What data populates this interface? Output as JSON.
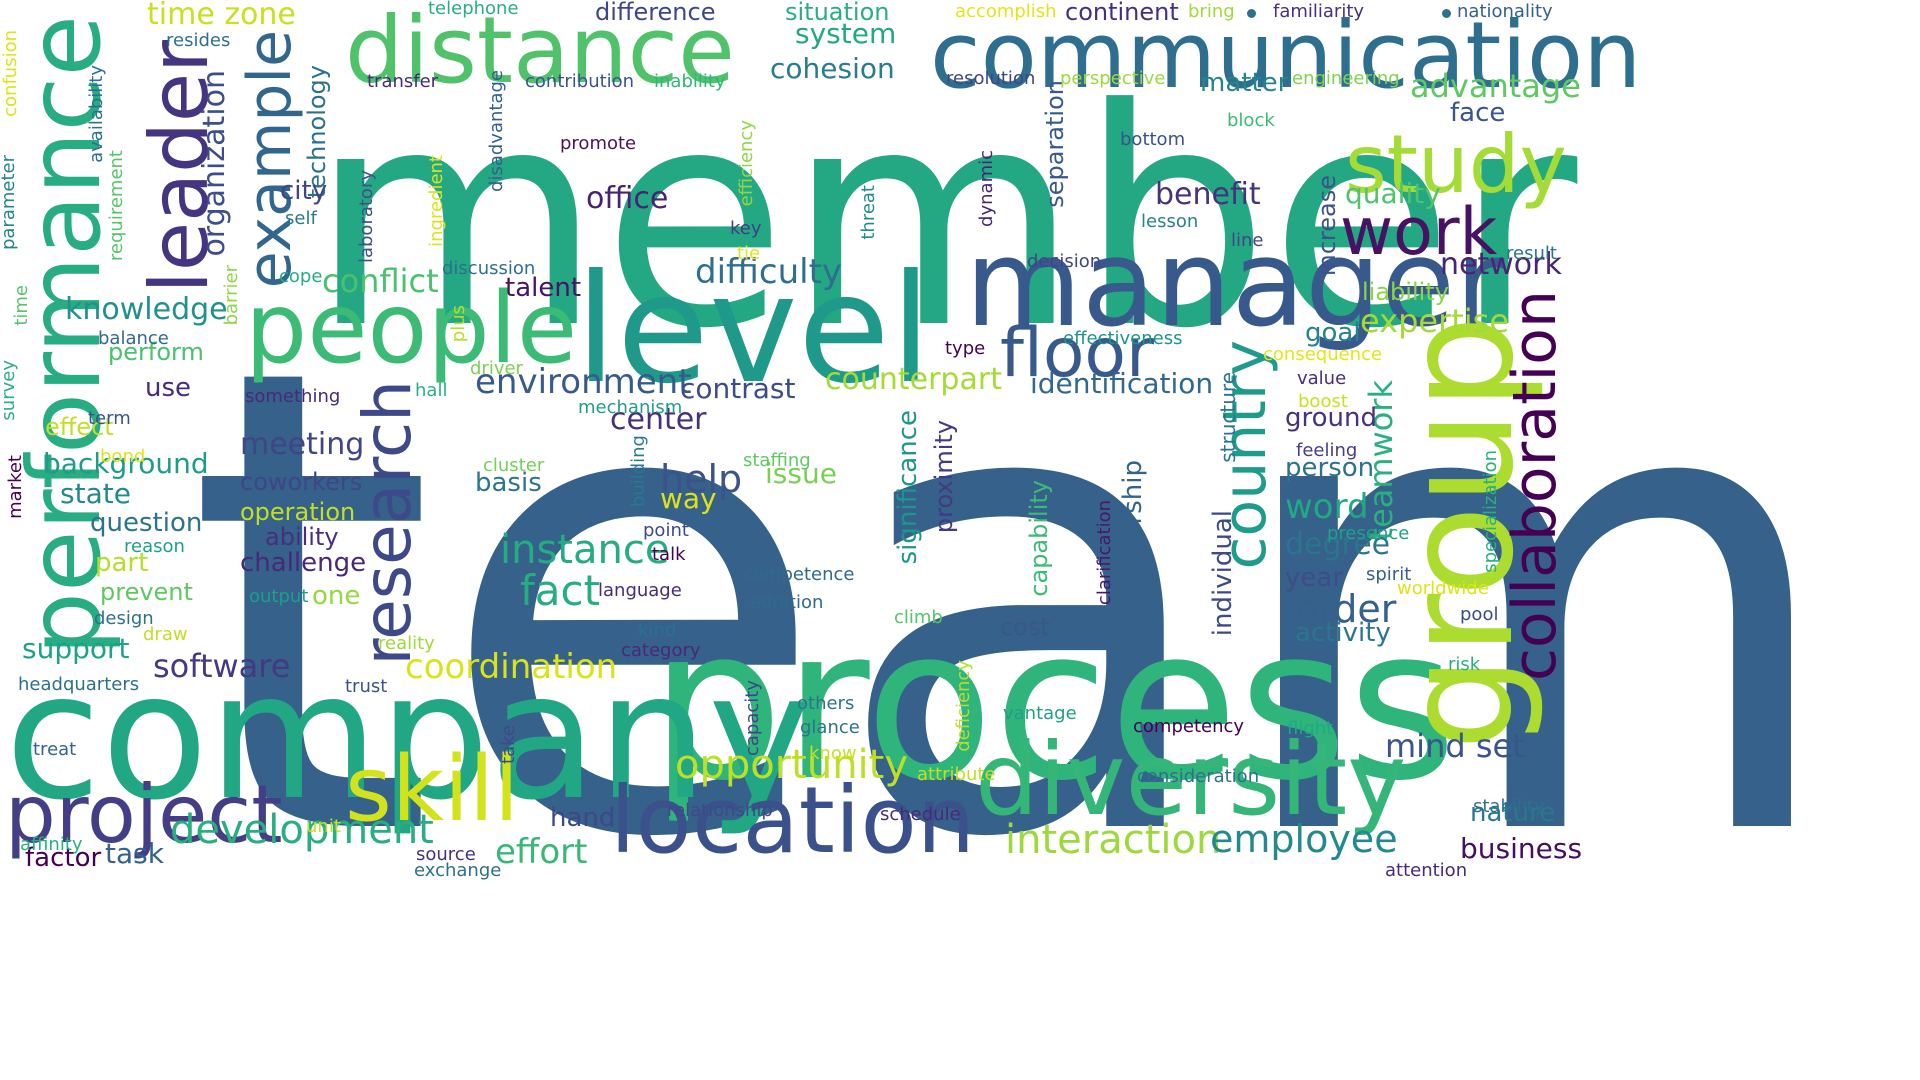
{
  "cloud": {
    "words": [
      {
        "id": "team",
        "text": "team",
        "color": "#35618a"
      },
      {
        "id": "member",
        "text": "member",
        "color": "#24a883"
      },
      {
        "id": "process",
        "text": "process",
        "color": "#2fb47c"
      },
      {
        "id": "company",
        "text": "company",
        "color": "#22a785"
      },
      {
        "id": "communication",
        "text": "communication",
        "color": "#2e6e8e"
      },
      {
        "id": "distance",
        "text": "distance",
        "color": "#4fc26a"
      },
      {
        "id": "level",
        "text": "level",
        "color": "#1f9a8a"
      },
      {
        "id": "manager",
        "text": "manager",
        "color": "#38598c"
      },
      {
        "id": "performance",
        "text": "performance",
        "color": "#27ad81"
      },
      {
        "id": "diversity",
        "text": "diversity",
        "color": "#34b679"
      },
      {
        "id": "group",
        "text": "group",
        "color": "#addc30"
      },
      {
        "id": "people",
        "text": "people",
        "color": "#3bbb75"
      },
      {
        "id": "leader",
        "text": "leader",
        "color": "#453581"
      },
      {
        "id": "location",
        "text": "location",
        "color": "#3b518b"
      },
      {
        "id": "project",
        "text": "project",
        "color": "#433e85"
      },
      {
        "id": "skill",
        "text": "skill",
        "color": "#d2e21b"
      },
      {
        "id": "research",
        "text": "research",
        "color": "#3e4989"
      },
      {
        "id": "study",
        "text": "study",
        "color": "#a5db36"
      },
      {
        "id": "example",
        "text": "example",
        "color": "#31668e"
      },
      {
        "id": "collaboration",
        "text": "collaboration",
        "color": "#440154"
      },
      {
        "id": "country",
        "text": "country",
        "color": "#1e9b8a"
      },
      {
        "id": "work",
        "text": "work",
        "color": "#471164"
      },
      {
        "id": "floor",
        "text": "floor",
        "color": "#38598c"
      },
      {
        "id": "development",
        "text": "development",
        "color": "#29af7f"
      },
      {
        "id": "opportunity",
        "text": "opportunity",
        "color": "#bddf26"
      },
      {
        "id": "interaction",
        "text": "interaction",
        "color": "#9dd93b"
      },
      {
        "id": "employee",
        "text": "employee",
        "color": "#23898e"
      },
      {
        "id": "instance",
        "text": "instance",
        "color": "#25ac82"
      },
      {
        "id": "fact",
        "text": "fact",
        "color": "#26ad81"
      },
      {
        "id": "difficulty",
        "text": "difficulty",
        "color": "#2e6e8e"
      },
      {
        "id": "coordination",
        "text": "coordination",
        "color": "#dae319"
      },
      {
        "id": "environment",
        "text": "environment",
        "color": "#375a8c"
      },
      {
        "id": "effort",
        "text": "effort",
        "color": "#37b878"
      },
      {
        "id": "help",
        "text": "help",
        "color": "#3b528b"
      },
      {
        "id": "order",
        "text": "order",
        "color": "#34608d"
      },
      {
        "id": "software",
        "text": "software",
        "color": "#443983"
      },
      {
        "id": "conflict",
        "text": "conflict",
        "color": "#4ac16d"
      },
      {
        "id": "knowledge",
        "text": "knowledge",
        "color": "#21918c"
      },
      {
        "id": "benefit",
        "text": "benefit",
        "color": "#46337e"
      },
      {
        "id": "office",
        "text": "office",
        "color": "#482374"
      },
      {
        "id": "expertise",
        "text": "expertise",
        "color": "#a2da37"
      },
      {
        "id": "network",
        "text": "network",
        "color": "#482475"
      },
      {
        "id": "advantage",
        "text": "advantage",
        "color": "#5ec962"
      },
      {
        "id": "quality",
        "text": "quality",
        "color": "#4ec36b"
      },
      {
        "id": "mind_set",
        "text": "mind set",
        "color": "#3a548c"
      },
      {
        "id": "business",
        "text": "business",
        "color": "#470d60"
      },
      {
        "id": "cohesion",
        "text": "cohesion",
        "color": "#297b8e"
      },
      {
        "id": "system",
        "text": "system",
        "color": "#22a884"
      },
      {
        "id": "support",
        "text": "support",
        "color": "#1fa088"
      },
      {
        "id": "counterpart",
        "text": "counterpart",
        "color": "#a5db36"
      },
      {
        "id": "identification",
        "text": "identification",
        "color": "#31688e"
      },
      {
        "id": "contrast",
        "text": "contrast",
        "color": "#3e4a89"
      },
      {
        "id": "teamwork",
        "text": "teamwork",
        "color": "#2ab07f"
      },
      {
        "id": "word",
        "text": "word",
        "color": "#22a884"
      },
      {
        "id": "degree",
        "text": "degree",
        "color": "#2b758e"
      },
      {
        "id": "nature",
        "text": "nature",
        "color": "#2a788e"
      },
      {
        "id": "issue",
        "text": "issue",
        "color": "#7ad151"
      },
      {
        "id": "meeting",
        "text": "meeting",
        "color": "#414487"
      },
      {
        "id": "center",
        "text": "center",
        "color": "#46307e"
      },
      {
        "id": "background",
        "text": "background",
        "color": "#1e9c89"
      },
      {
        "id": "state",
        "text": "state",
        "color": "#23898e"
      },
      {
        "id": "question",
        "text": "question",
        "color": "#2b748e"
      },
      {
        "id": "time_zone",
        "text": "time zone",
        "color": "#c8e020"
      },
      {
        "id": "talent",
        "text": "talent",
        "color": "#471365"
      },
      {
        "id": "task",
        "text": "task",
        "color": "#33638d"
      },
      {
        "id": "factor",
        "text": "factor",
        "color": "#440154"
      },
      {
        "id": "activity",
        "text": "activity",
        "color": "#2a768e"
      },
      {
        "id": "challenge",
        "text": "challenge",
        "color": "#482878"
      },
      {
        "id": "ground",
        "text": "ground",
        "color": "#46327e"
      },
      {
        "id": "person",
        "text": "person",
        "color": "#2c738e"
      },
      {
        "id": "hand",
        "text": "hand",
        "color": "#3f4788"
      },
      {
        "id": "goal",
        "text": "goal",
        "color": "#26828e"
      },
      {
        "id": "year",
        "text": "year",
        "color": "#3e4c8a"
      },
      {
        "id": "matter",
        "text": "matter",
        "color": "#25848e"
      },
      {
        "id": "face",
        "text": "face",
        "color": "#3a548c"
      },
      {
        "id": "situation",
        "text": "situation",
        "color": "#29af7f"
      },
      {
        "id": "continent",
        "text": "continent",
        "color": "#46307e"
      },
      {
        "id": "difference",
        "text": "difference",
        "color": "#3f4788"
      },
      {
        "id": "perform",
        "text": "perform",
        "color": "#4ac16d"
      },
      {
        "id": "effect",
        "text": "effect",
        "color": "#c0df25"
      },
      {
        "id": "part",
        "text": "part",
        "color": "#b5de2b"
      },
      {
        "id": "prevent",
        "text": "prevent",
        "color": "#5ec962"
      },
      {
        "id": "use",
        "text": "use",
        "color": "#472c7a"
      },
      {
        "id": "ability",
        "text": "ability",
        "color": "#472f7d"
      },
      {
        "id": "coworkers",
        "text": "coworkers",
        "color": "#404588"
      },
      {
        "id": "operation",
        "text": "operation",
        "color": "#c2df23"
      },
      {
        "id": "one",
        "text": "one",
        "color": "#95d840"
      },
      {
        "id": "cost",
        "text": "cost",
        "color": "#38588c"
      },
      {
        "id": "liability",
        "text": "liability",
        "color": "#8bd646"
      },
      {
        "id": "organization",
        "text": "organization",
        "color": "#3d4e8a"
      },
      {
        "id": "technology",
        "text": "technology",
        "color": "#2d718e"
      },
      {
        "id": "city",
        "text": "city",
        "color": "#414487"
      },
      {
        "id": "way",
        "text": "way",
        "color": "#dde318"
      },
      {
        "id": "basis",
        "text": "basis",
        "color": "#2b758e"
      },
      {
        "id": "significance",
        "text": "significance",
        "color": "#1f968b"
      },
      {
        "id": "proximity",
        "text": "proximity",
        "color": "#443983"
      },
      {
        "id": "capability",
        "text": "capability",
        "color": "#3bbb75"
      },
      {
        "id": "leadership",
        "text": "leadership",
        "color": "#33638d"
      },
      {
        "id": "individual",
        "text": "individual",
        "color": "#3e4989"
      },
      {
        "id": "separation",
        "text": "separation",
        "color": "#38598c"
      },
      {
        "id": "increase",
        "text": "increase",
        "color": "#3b528b"
      },
      {
        "id": "structure",
        "text": "structure",
        "color": "#2c738e"
      },
      {
        "id": "specialization",
        "text": "specialization",
        "color": "#2ab07f"
      },
      {
        "id": "clarification",
        "text": "clarification",
        "color": "#48186a"
      },
      {
        "id": "laboratory",
        "text": "laboratory",
        "color": "#3b528b"
      },
      {
        "id": "ingredient",
        "text": "ingredient",
        "color": "#dde318"
      },
      {
        "id": "efficiency",
        "text": "efficiency",
        "color": "#8fd744"
      },
      {
        "id": "threat",
        "text": "threat",
        "color": "#228c8d"
      },
      {
        "id": "dynamic",
        "text": "dynamic",
        "color": "#482475"
      },
      {
        "id": "barrier",
        "text": "barrier",
        "color": "#8fd744"
      },
      {
        "id": "plus",
        "text": "plus",
        "color": "#b5de2b"
      },
      {
        "id": "building",
        "text": "building",
        "color": "#2a788e"
      },
      {
        "id": "requirement",
        "text": "requirement",
        "color": "#54c568"
      },
      {
        "id": "availability",
        "text": "availability",
        "color": "#2d708e"
      },
      {
        "id": "disadvantage",
        "text": "disadvantage",
        "color": "#355e8d"
      },
      {
        "id": "deficiency",
        "text": "deficiency",
        "color": "#b8de29"
      },
      {
        "id": "capacity",
        "text": "capacity",
        "color": "#414487"
      },
      {
        "id": "take",
        "text": "take",
        "color": "#3e4989"
      },
      {
        "id": "confusion",
        "text": "confusion",
        "color": "#dde318"
      },
      {
        "id": "parameter",
        "text": "parameter",
        "color": "#25858e"
      },
      {
        "id": "time",
        "text": "time",
        "color": "#54c568"
      },
      {
        "id": "survey",
        "text": "survey",
        "color": "#2ab07f"
      },
      {
        "id": "market",
        "text": "market",
        "color": "#440154"
      },
      {
        "id": "telephone",
        "text": "telephone",
        "color": "#29af7f"
      },
      {
        "id": "accomplish",
        "text": "accomplish",
        "color": "#e5e419"
      },
      {
        "id": "bring",
        "text": "bring",
        "color": "#a0da39"
      },
      {
        "id": "familiarity",
        "text": "familiarity",
        "color": "#46307e"
      },
      {
        "id": "nationality",
        "text": "nationality",
        "color": "#34608d"
      },
      {
        "id": "resides",
        "text": "resides",
        "color": "#2d708e"
      },
      {
        "id": "transfer",
        "text": "transfer",
        "color": "#472a7a"
      },
      {
        "id": "contribution",
        "text": "contribution",
        "color": "#3a548c"
      },
      {
        "id": "inability",
        "text": "inability",
        "color": "#2fb47c"
      },
      {
        "id": "resolution",
        "text": "resolution",
        "color": "#404588"
      },
      {
        "id": "perspective",
        "text": "perspective",
        "color": "#9dd93b"
      },
      {
        "id": "engineering",
        "text": "engineering",
        "color": "#7fd34e"
      },
      {
        "id": "promote",
        "text": "promote",
        "color": "#471365"
      },
      {
        "id": "bottom",
        "text": "bottom",
        "color": "#3b528b"
      },
      {
        "id": "block",
        "text": "block",
        "color": "#3bbb75"
      },
      {
        "id": "lesson",
        "text": "lesson",
        "color": "#26828e"
      },
      {
        "id": "key",
        "text": "key",
        "color": "#433e85"
      },
      {
        "id": "line",
        "text": "line",
        "color": "#3f4788"
      },
      {
        "id": "result",
        "text": "result",
        "color": "#2c738e"
      },
      {
        "id": "tie",
        "text": "tie",
        "color": "#e5e419"
      },
      {
        "id": "self",
        "text": "self",
        "color": "#2a788e"
      },
      {
        "id": "cope",
        "text": "cope",
        "color": "#27ad81"
      },
      {
        "id": "balance",
        "text": "balance",
        "color": "#31688e"
      },
      {
        "id": "discussion",
        "text": "discussion",
        "color": "#2d708e"
      },
      {
        "id": "decision",
        "text": "decision",
        "color": "#404588"
      },
      {
        "id": "effectiveness",
        "text": "effectiveness",
        "color": "#20928c"
      },
      {
        "id": "type",
        "text": "type",
        "color": "#440154"
      },
      {
        "id": "consequence",
        "text": "consequence",
        "color": "#e5e419"
      },
      {
        "id": "something",
        "text": "something",
        "color": "#472a7a"
      },
      {
        "id": "driver",
        "text": "driver",
        "color": "#7ad151"
      },
      {
        "id": "hall",
        "text": "hall",
        "color": "#2ab07f"
      },
      {
        "id": "mechanism",
        "text": "mechanism",
        "color": "#1f9e89"
      },
      {
        "id": "value",
        "text": "value",
        "color": "#472d7b"
      },
      {
        "id": "boost",
        "text": "boost",
        "color": "#c8e020"
      },
      {
        "id": "feeling",
        "text": "feeling",
        "color": "#433e85"
      },
      {
        "id": "term",
        "text": "term",
        "color": "#3b528b"
      },
      {
        "id": "bond",
        "text": "bond",
        "color": "#dde318"
      },
      {
        "id": "cluster",
        "text": "cluster",
        "color": "#75d054"
      },
      {
        "id": "staffing",
        "text": "staffing",
        "color": "#5ec962"
      },
      {
        "id": "point",
        "text": "point",
        "color": "#3e4989"
      },
      {
        "id": "talk",
        "text": "talk",
        "color": "#440154"
      },
      {
        "id": "presence",
        "text": "presence",
        "color": "#1fa188"
      },
      {
        "id": "spirit",
        "text": "spirit",
        "color": "#35608d"
      },
      {
        "id": "worldwide",
        "text": "worldwide",
        "color": "#dde318"
      },
      {
        "id": "reason",
        "text": "reason",
        "color": "#1f9e89"
      },
      {
        "id": "language",
        "text": "language",
        "color": "#472c7a"
      },
      {
        "id": "competence",
        "text": "competence",
        "color": "#31688e"
      },
      {
        "id": "addition",
        "text": "addition",
        "color": "#31688e"
      },
      {
        "id": "output",
        "text": "output",
        "color": "#1f9e89"
      },
      {
        "id": "design",
        "text": "design",
        "color": "#2d708e"
      },
      {
        "id": "draw",
        "text": "draw",
        "color": "#bddf26"
      },
      {
        "id": "climb",
        "text": "climb",
        "color": "#54c568"
      },
      {
        "id": "pool",
        "text": "pool",
        "color": "#3e4989"
      },
      {
        "id": "kind",
        "text": "kind",
        "color": "#2d708e"
      },
      {
        "id": "category",
        "text": "category",
        "color": "#482878"
      },
      {
        "id": "reality",
        "text": "reality",
        "color": "#9dd93b"
      },
      {
        "id": "risk",
        "text": "risk",
        "color": "#2ab07f"
      },
      {
        "id": "headquarters",
        "text": "headquarters",
        "color": "#2d708e"
      },
      {
        "id": "trust",
        "text": "trust",
        "color": "#3b528b"
      },
      {
        "id": "others",
        "text": "others",
        "color": "#2c738e"
      },
      {
        "id": "glance",
        "text": "glance",
        "color": "#2c738e"
      },
      {
        "id": "vantage",
        "text": "vantage",
        "color": "#1f9e89"
      },
      {
        "id": "competency",
        "text": "competency",
        "color": "#440154"
      },
      {
        "id": "flight",
        "text": "flight",
        "color": "#22a884"
      },
      {
        "id": "treat",
        "text": "treat",
        "color": "#33638d"
      },
      {
        "id": "know",
        "text": "know",
        "color": "#c8e020"
      },
      {
        "id": "attribute",
        "text": "attribute",
        "color": "#c2df23"
      },
      {
        "id": "consideration",
        "text": "consideration",
        "color": "#2d708e"
      },
      {
        "id": "stability",
        "text": "stability",
        "color": "#2d708e"
      },
      {
        "id": "relationship",
        "text": "relationship",
        "color": "#3e4989"
      },
      {
        "id": "schedule",
        "text": "schedule",
        "color": "#472a7a"
      },
      {
        "id": "unit",
        "text": "unit",
        "color": "#c8e020"
      },
      {
        "id": "affinity",
        "text": "affinity",
        "color": "#2ab07f"
      },
      {
        "id": "source",
        "text": "source",
        "color": "#46307e"
      },
      {
        "id": "exchange",
        "text": "exchange",
        "color": "#2d708e"
      },
      {
        "id": "attention",
        "text": "attention",
        "color": "#472a7a"
      }
    ]
  }
}
